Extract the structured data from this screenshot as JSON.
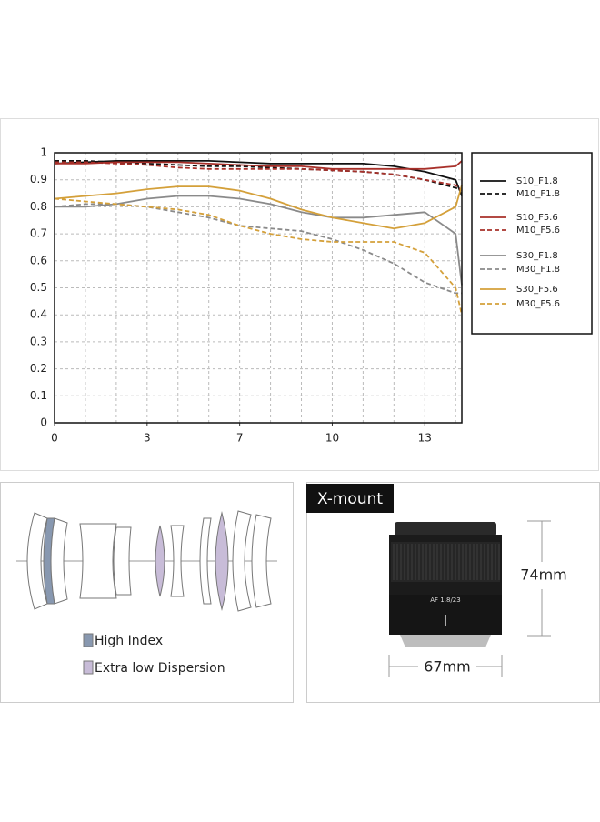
{
  "chart_data": {
    "type": "line",
    "x": [
      0,
      1,
      2,
      3,
      4,
      5,
      6,
      7,
      8,
      9,
      10,
      11,
      12,
      13,
      13.2
    ],
    "xlim": [
      0,
      13.2
    ],
    "xticks": [
      0,
      3,
      {
        "value": 6,
        "label": "7"
      },
      {
        "value": 9,
        "label": "10"
      },
      {
        "value": 12,
        "label": "13"
      }
    ],
    "x_grid": [
      1,
      2,
      3,
      4,
      5,
      6,
      7,
      8,
      9,
      10,
      11,
      12,
      13
    ],
    "ylim": [
      0,
      1
    ],
    "yticks": [
      0,
      0.1,
      0.2,
      0.3,
      0.4,
      0.5,
      0.6,
      0.7,
      0.8,
      0.9,
      1
    ],
    "grid": true,
    "legend": "right",
    "series": [
      {
        "name": "S10_F1.8",
        "color": "#111111",
        "style": "solid",
        "values": [
          0.96,
          0.965,
          0.97,
          0.97,
          0.97,
          0.97,
          0.965,
          0.96,
          0.96,
          0.96,
          0.96,
          0.95,
          0.93,
          0.9,
          0.84
        ]
      },
      {
        "name": "M10_F1.8",
        "color": "#111111",
        "style": "dashed",
        "values": [
          0.97,
          0.97,
          0.965,
          0.96,
          0.955,
          0.95,
          0.95,
          0.945,
          0.94,
          0.935,
          0.93,
          0.92,
          0.9,
          0.87,
          0.86
        ]
      },
      {
        "name": "S10_F5.6",
        "color": "#a8302a",
        "style": "solid",
        "values": [
          0.96,
          0.96,
          0.965,
          0.965,
          0.965,
          0.96,
          0.955,
          0.95,
          0.95,
          0.94,
          0.94,
          0.94,
          0.94,
          0.95,
          0.97
        ]
      },
      {
        "name": "M10_F5.6",
        "color": "#a8302a",
        "style": "dashed",
        "values": [
          0.965,
          0.965,
          0.96,
          0.955,
          0.945,
          0.94,
          0.94,
          0.94,
          0.94,
          0.935,
          0.93,
          0.92,
          0.9,
          0.88,
          0.86
        ]
      },
      {
        "name": "S30_F1.8",
        "color": "#8a8a8a",
        "style": "solid",
        "values": [
          0.8,
          0.8,
          0.81,
          0.83,
          0.84,
          0.84,
          0.83,
          0.81,
          0.78,
          0.76,
          0.76,
          0.77,
          0.78,
          0.7,
          0.51
        ]
      },
      {
        "name": "M30_F1.8",
        "color": "#8a8a8a",
        "style": "dashed",
        "values": [
          0.8,
          0.81,
          0.81,
          0.8,
          0.78,
          0.76,
          0.73,
          0.72,
          0.71,
          0.68,
          0.64,
          0.59,
          0.52,
          0.48,
          0.48
        ]
      },
      {
        "name": "S30_F5.6",
        "color": "#d4a03a",
        "style": "solid",
        "values": [
          0.83,
          0.84,
          0.85,
          0.865,
          0.875,
          0.875,
          0.86,
          0.83,
          0.79,
          0.76,
          0.74,
          0.72,
          0.74,
          0.8,
          0.88
        ]
      },
      {
        "name": "M30_F5.6",
        "color": "#d4a03a",
        "style": "dashed",
        "values": [
          0.83,
          0.82,
          0.81,
          0.8,
          0.79,
          0.77,
          0.73,
          0.7,
          0.68,
          0.67,
          0.67,
          0.67,
          0.63,
          0.5,
          0.4
        ]
      }
    ]
  },
  "optics": {
    "legend": [
      "High Index",
      "Extra low Dispersion"
    ]
  },
  "product": {
    "mount": "X-mount",
    "lens_text": "AF 1.8/23",
    "height": "74mm",
    "width": "67mm"
  }
}
